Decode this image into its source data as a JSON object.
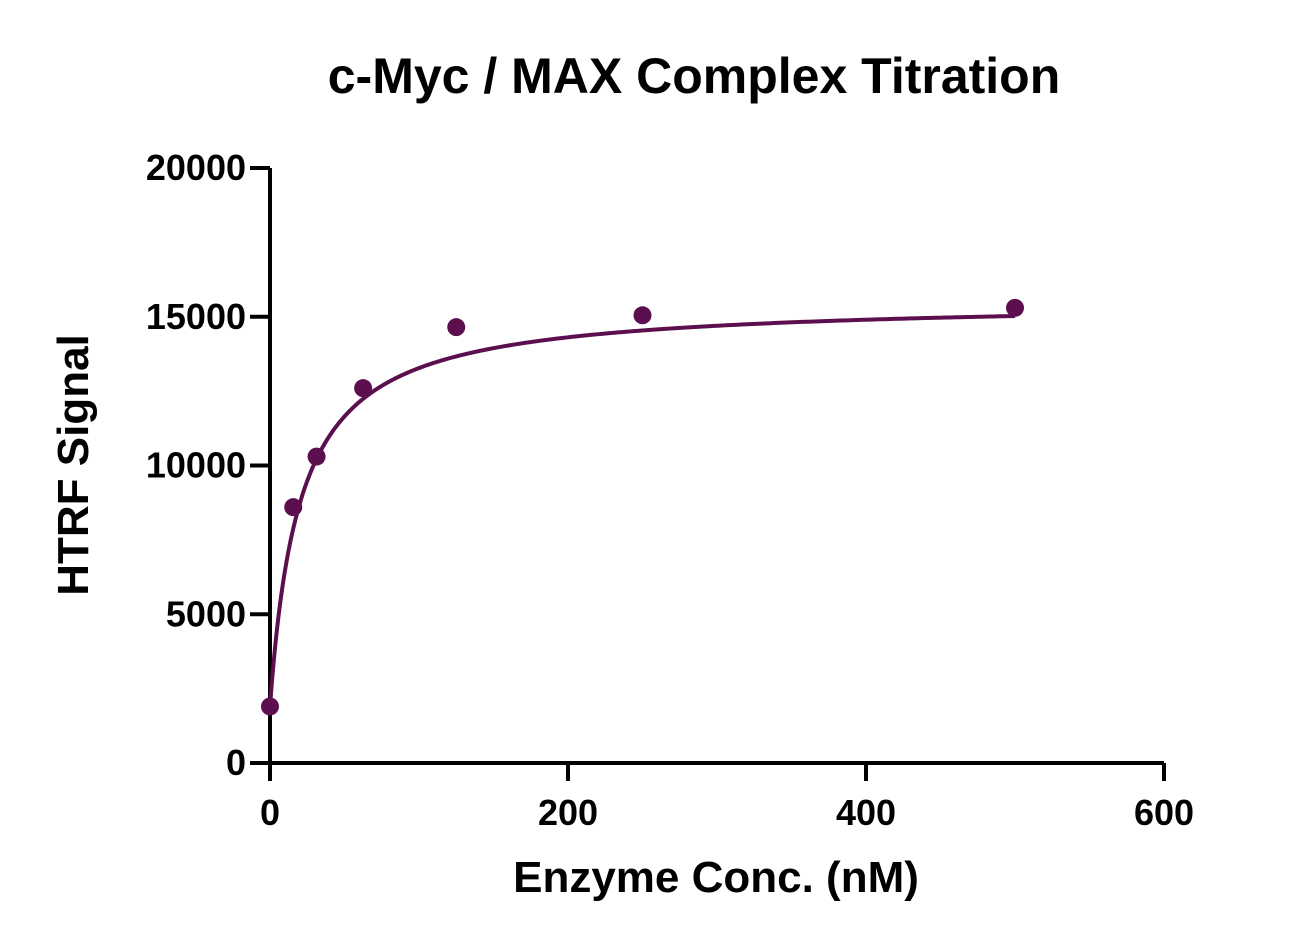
{
  "chart_data": {
    "type": "scatter",
    "title": "c-Myc / MAX Complex Titration",
    "xlabel": "Enzyme Conc. (nM)",
    "ylabel": "HTRF Signal",
    "xlim": [
      0,
      600
    ],
    "ylim": [
      0,
      20000
    ],
    "x_ticks": [
      0,
      200,
      400,
      600
    ],
    "y_ticks": [
      0,
      5000,
      10000,
      15000,
      20000
    ],
    "grid": false,
    "legend": "none",
    "series": [
      {
        "points": [
          {
            "x": 0,
            "y": 1900
          },
          {
            "x": 15.6,
            "y": 8600
          },
          {
            "x": 31.25,
            "y": 10300
          },
          {
            "x": 62.5,
            "y": 12600
          },
          {
            "x": 125,
            "y": 14650
          },
          {
            "x": 250,
            "y": 15050
          },
          {
            "x": 500,
            "y": 15300
          }
        ],
        "fit": {
          "model": "one-site-binding",
          "bottom": 1900,
          "bmax": 13650,
          "kd": 20
        },
        "color": "#5b0f4f"
      }
    ]
  }
}
